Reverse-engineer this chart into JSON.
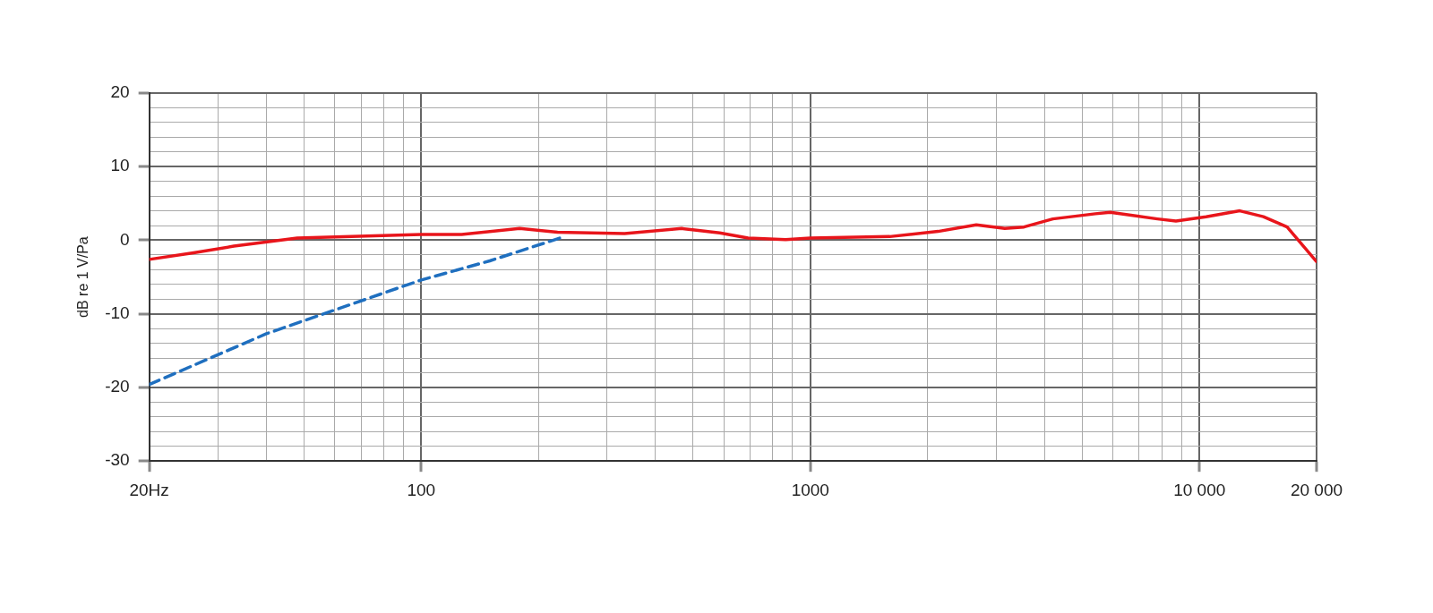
{
  "chart_data": {
    "type": "line",
    "ylabel": "dB re 1 V/Pa",
    "log": "x",
    "grid": true,
    "legend": false,
    "marker": "none",
    "xlim": [
      20,
      20000
    ],
    "xticks": [
      {
        "value": 20,
        "label": "20Hz"
      },
      {
        "value": 30,
        "label": null
      },
      {
        "value": 40,
        "label": null
      },
      {
        "value": 50,
        "label": null
      },
      {
        "value": 60,
        "label": null
      },
      {
        "value": 70,
        "label": null
      },
      {
        "value": 80,
        "label": null
      },
      {
        "value": 90,
        "label": null
      },
      100,
      {
        "value": 200,
        "label": null
      },
      {
        "value": 300,
        "label": null
      },
      {
        "value": 400,
        "label": null
      },
      {
        "value": 500,
        "label": null
      },
      {
        "value": 600,
        "label": null
      },
      {
        "value": 700,
        "label": null
      },
      {
        "value": 800,
        "label": null
      },
      {
        "value": 900,
        "label": null
      },
      1000,
      {
        "value": 2000,
        "label": null
      },
      {
        "value": 3000,
        "label": null
      },
      {
        "value": 4000,
        "label": null
      },
      {
        "value": 5000,
        "label": null
      },
      {
        "value": 6000,
        "label": null
      },
      {
        "value": 7000,
        "label": null
      },
      {
        "value": 8000,
        "label": null
      },
      {
        "value": 9000,
        "label": null
      },
      {
        "value": 10000,
        "label": "10 000"
      },
      {
        "value": 20000,
        "label": "20 000"
      }
    ],
    "ylim": [
      -30,
      20
    ],
    "yticks": [
      -30,
      {
        "value": -28,
        "label": null
      },
      {
        "value": -26,
        "label": null
      },
      {
        "value": -24,
        "label": null
      },
      {
        "value": -22,
        "label": null
      },
      -20,
      {
        "value": -18,
        "label": null
      },
      {
        "value": -16,
        "label": null
      },
      {
        "value": -14,
        "label": null
      },
      {
        "value": -12,
        "label": null
      },
      -10,
      {
        "value": -8,
        "label": null
      },
      {
        "value": -6,
        "label": null
      },
      {
        "value": -4,
        "label": null
      },
      {
        "value": -2,
        "label": null
      },
      0,
      {
        "value": 2,
        "label": null
      },
      {
        "value": 4,
        "label": null
      },
      {
        "value": 6,
        "label": null
      },
      {
        "value": 8,
        "label": null
      },
      10,
      {
        "value": 12,
        "label": null
      },
      {
        "value": 14,
        "label": null
      },
      {
        "value": 16,
        "label": null
      },
      {
        "value": 18,
        "label": null
      },
      20
    ],
    "series": [
      {
        "color": "#e8151b",
        "line_style": "solid",
        "x": [
          20,
          26,
          33,
          48,
          100,
          127,
          179,
          224,
          333,
          467,
          585,
          692,
          864,
          1000,
          1600,
          2130,
          2670,
          3160,
          3540,
          4200,
          5400,
          5900,
          7800,
          8700,
          10400,
          12700,
          14600,
          16800,
          20000
        ],
        "values": [
          -2.6,
          -1.7,
          -0.8,
          0.3,
          0.8,
          0.8,
          1.6,
          1.1,
          0.9,
          1.6,
          1.0,
          0.3,
          0.1,
          0.3,
          0.5,
          1.2,
          2.1,
          1.6,
          1.8,
          2.9,
          3.6,
          3.8,
          2.9,
          2.6,
          3.2,
          4.0,
          3.2,
          1.8,
          -2.9
        ]
      },
      {
        "color": "#1f6fbf",
        "line_style": "dashed",
        "x": [
          20,
          40,
          100,
          150,
          230
        ],
        "values": [
          -19.6,
          -12.7,
          -5.4,
          -2.8,
          0.4
        ]
      }
    ]
  }
}
